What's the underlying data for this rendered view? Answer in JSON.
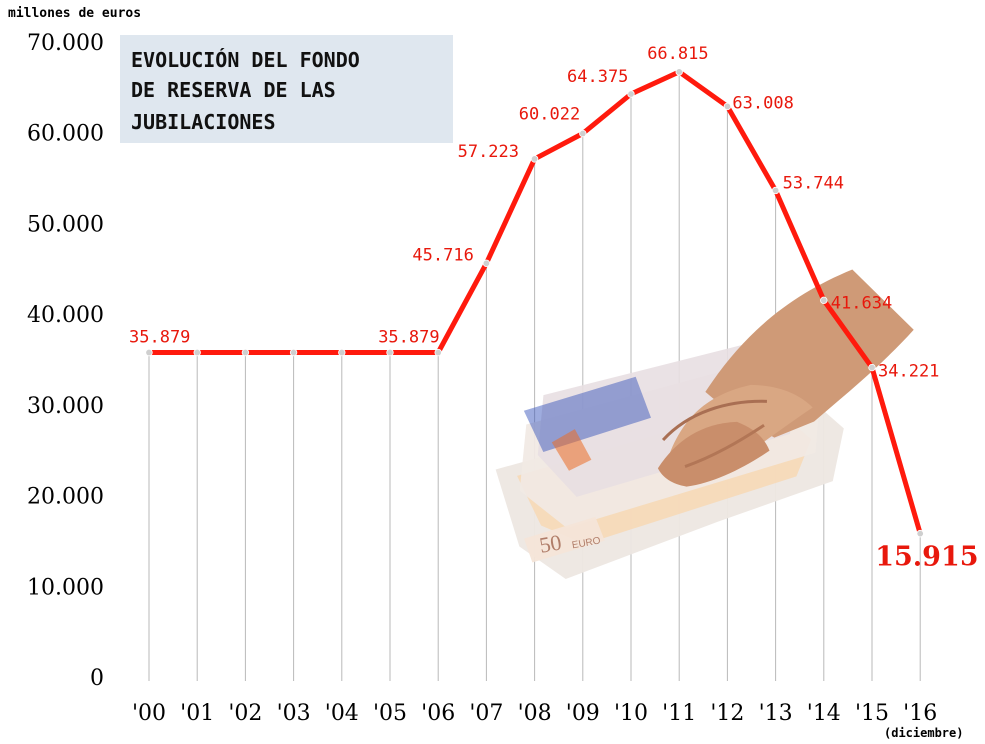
{
  "chart_data": {
    "type": "line",
    "title_lines": [
      "EVOLUCIÓN DEL FONDO",
      "DE RESERVA DE LAS",
      "JUBILACIONES"
    ],
    "unit_label": "millones de euros",
    "x": [
      "'00",
      "'01",
      "'02",
      "'03",
      "'04",
      "'05",
      "'06",
      "'07",
      "'08",
      "'09",
      "'10",
      "'11",
      "'12",
      "'13",
      "'14",
      "'15",
      "'16"
    ],
    "values": [
      35879,
      35879,
      35879,
      35879,
      35879,
      35879,
      35879,
      45716,
      57223,
      60022,
      64375,
      66815,
      63008,
      53744,
      41634,
      34221,
      15915
    ],
    "data_labels": [
      {
        "index": 0,
        "text": "35.879"
      },
      {
        "index": 6,
        "text": "35.879"
      },
      {
        "index": 7,
        "text": "45.716"
      },
      {
        "index": 8,
        "text": "57.223"
      },
      {
        "index": 9,
        "text": "60.022"
      },
      {
        "index": 10,
        "text": "64.375"
      },
      {
        "index": 11,
        "text": "66.815"
      },
      {
        "index": 12,
        "text": "63.008"
      },
      {
        "index": 13,
        "text": "53.744"
      },
      {
        "index": 14,
        "text": "41.634"
      },
      {
        "index": 15,
        "text": "34.221"
      },
      {
        "index": 16,
        "text": "15.915"
      }
    ],
    "yticks": [
      "0",
      "10.000",
      "20.000",
      "30.000",
      "40.000",
      "50.000",
      "60.000",
      "70.000"
    ],
    "ylim": [
      0,
      70000
    ],
    "x_note": "(diciembre)",
    "grid": "vertical",
    "colors": {
      "line": "#ff1a0d",
      "label": "#e8180c",
      "title_box": "#dfe7ef",
      "point": "#cfcfcf",
      "grid": "#b9b9b9"
    },
    "image_icon": "hand-holding-euro-banknotes"
  }
}
